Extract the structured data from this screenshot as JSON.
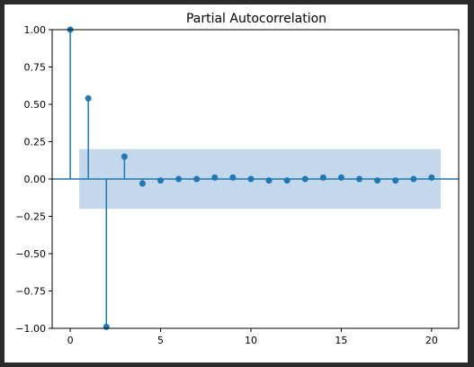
{
  "chart_data": {
    "type": "stem",
    "title": "Partial Autocorrelation",
    "xlabel": "",
    "ylabel": "",
    "xlim": [
      -1,
      21.5
    ],
    "ylim": [
      -1.0,
      1.0
    ],
    "x_ticks": [
      0,
      5,
      10,
      15,
      20
    ],
    "y_ticks": [
      1.0,
      0.75,
      0.5,
      0.25,
      0.0,
      -0.25,
      -0.5,
      -0.75,
      -1.0
    ],
    "x_tick_labels": [
      "0",
      "5",
      "10",
      "15",
      "20"
    ],
    "y_tick_labels": [
      "1.00",
      "0.75",
      "0.50",
      "0.25",
      "0.00",
      "−0.25",
      "−0.50",
      "−0.75",
      "−1.00"
    ],
    "lags": [
      0,
      1,
      2,
      3,
      4,
      5,
      6,
      7,
      8,
      9,
      10,
      11,
      12,
      13,
      14,
      15,
      16,
      17,
      18,
      19,
      20
    ],
    "values": [
      1.0,
      0.54,
      -0.99,
      0.15,
      -0.03,
      -0.01,
      0.0,
      0.0,
      0.01,
      0.01,
      0.0,
      -0.01,
      -0.01,
      0.0,
      0.01,
      0.01,
      0.0,
      -0.01,
      -0.01,
      0.0,
      0.01
    ],
    "confidence_band": {
      "x_start": 0.5,
      "x_end": 20.5,
      "lower": -0.2,
      "upper": 0.2
    },
    "zero_line": true,
    "grid": false,
    "legend": "none",
    "colors": {
      "stem": "#1f77b4",
      "band": "#c3d8ea",
      "axis": "#000000"
    }
  }
}
